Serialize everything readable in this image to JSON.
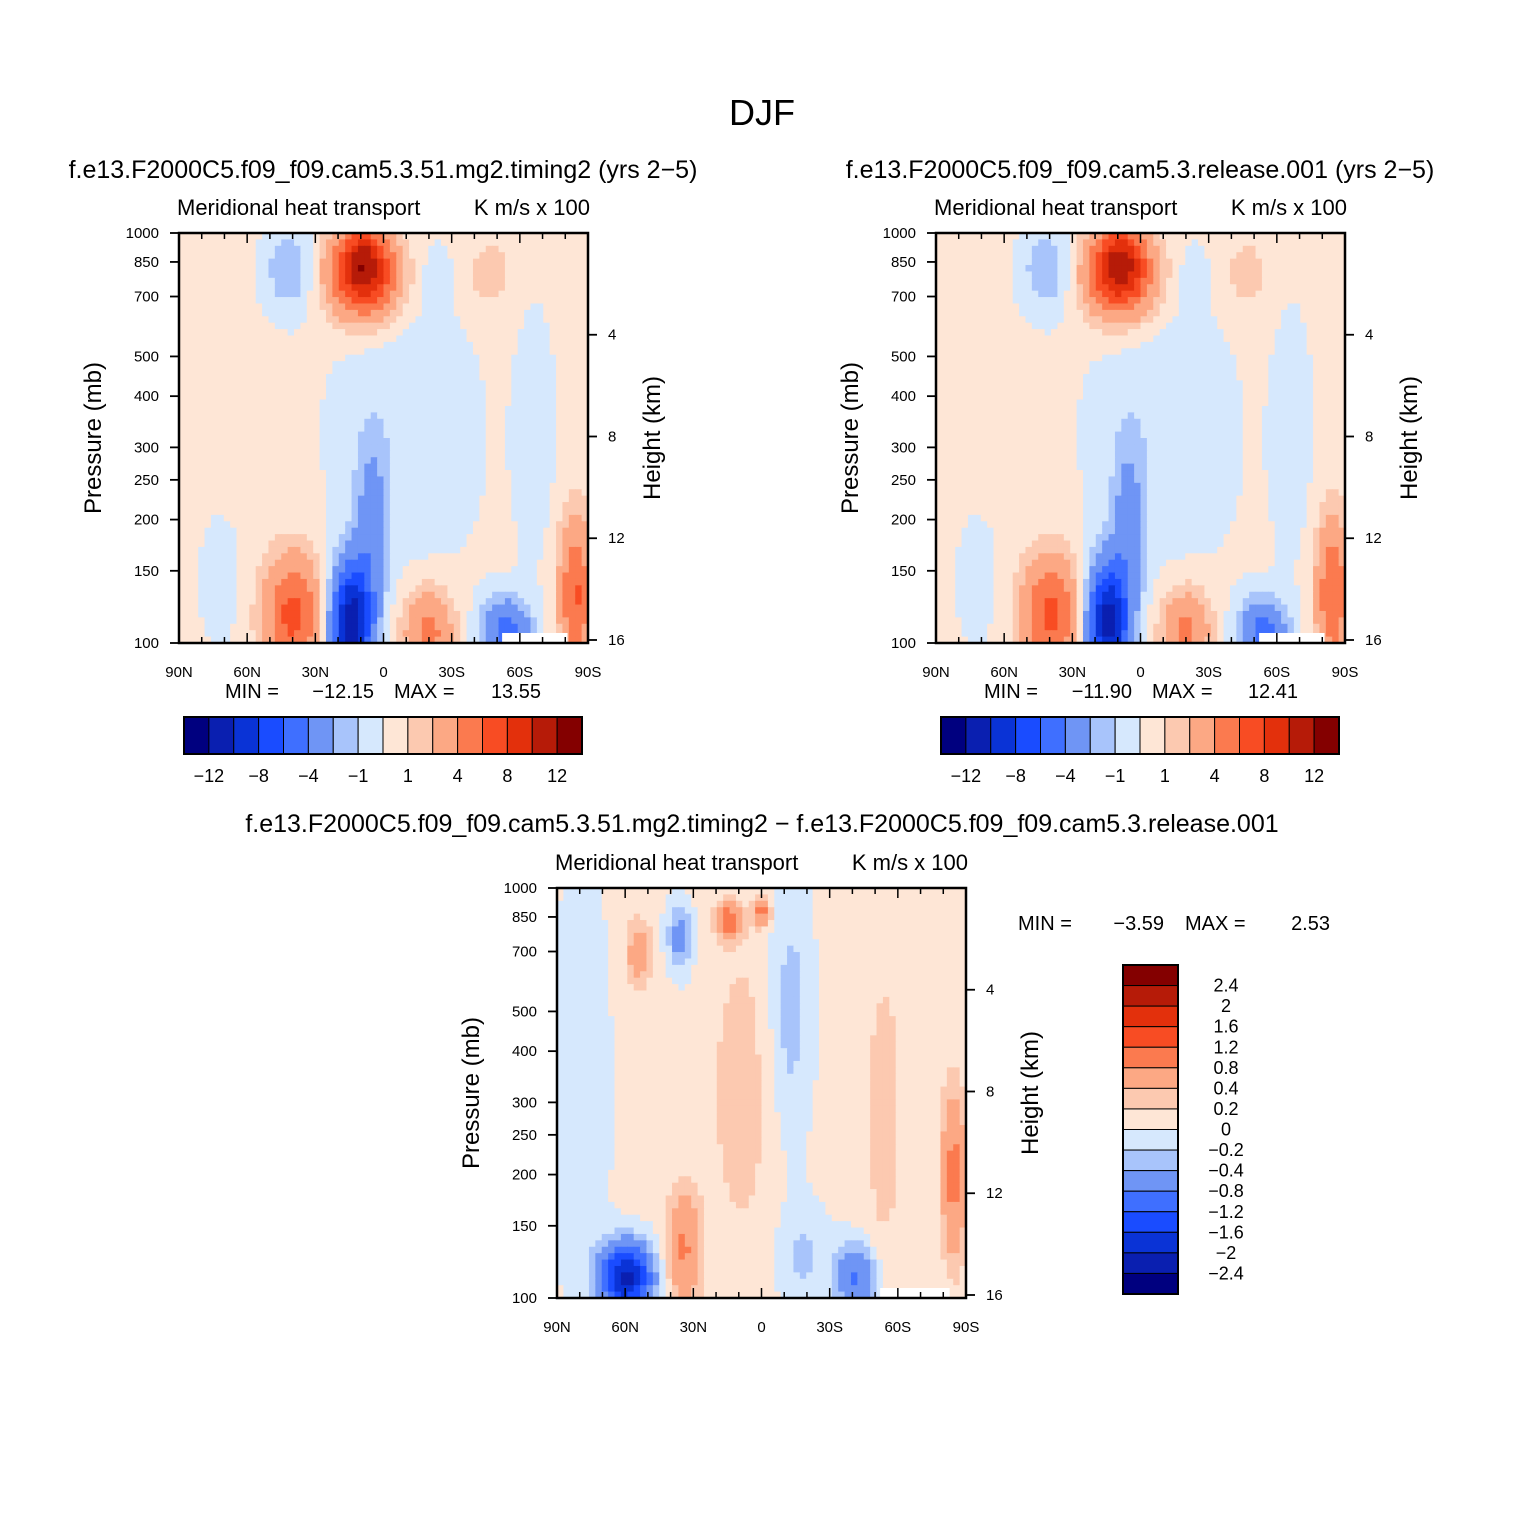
{
  "title": "DJF",
  "colors": {
    "levels": [
      "#00007f",
      "#0a1fb0",
      "#0a33d6",
      "#1a4cff",
      "#3f6fff",
      "#6f95f5",
      "#a8c4fb",
      "#d6e8fd",
      "#fee6d6",
      "#fcc9b0",
      "#fca884",
      "#fb7a4f",
      "#f84c23",
      "#e3300c",
      "#b61b08",
      "#840000"
    ]
  },
  "chart_data": [
    {
      "type": "contour",
      "title": "f.e13.F2000C5.f09_f09.cam5.3.51.mg2.timing2 (yrs 2−5)",
      "subtitle_left": "Meridional heat transport",
      "subtitle_right": "K m/s x 100",
      "xlabel": "",
      "ylabel": "Pressure (mb)",
      "y2label": "Height (km)",
      "x_ticks": [
        "90N",
        "60N",
        "30N",
        "0",
        "30S",
        "60S",
        "90S"
      ],
      "y_ticks": [
        100,
        150,
        200,
        250,
        300,
        400,
        500,
        700,
        850,
        1000
      ],
      "y2_ticks": [
        16,
        12,
        8,
        4
      ],
      "min_label": "MIN =",
      "min_value": "−12.15",
      "max_label": "MAX =",
      "max_value": "13.55",
      "colorbar": {
        "orientation": "horizontal",
        "labels": [
          "−12",
          "−8",
          "−4",
          "−1",
          "1",
          "4",
          "8",
          "12"
        ]
      }
    },
    {
      "type": "contour",
      "title": "f.e13.F2000C5.f09_f09.cam5.3.release.001 (yrs 2−5)",
      "subtitle_left": "Meridional heat transport",
      "subtitle_right": "K m/s x 100",
      "xlabel": "",
      "ylabel": "Pressure (mb)",
      "y2label": "Height (km)",
      "x_ticks": [
        "90N",
        "60N",
        "30N",
        "0",
        "30S",
        "60S",
        "90S"
      ],
      "y_ticks": [
        100,
        150,
        200,
        250,
        300,
        400,
        500,
        700,
        850,
        1000
      ],
      "y2_ticks": [
        16,
        12,
        8,
        4
      ],
      "min_label": "MIN =",
      "min_value": "−11.90",
      "max_label": "MAX =",
      "max_value": "12.41",
      "colorbar": {
        "orientation": "horizontal",
        "labels": [
          "−12",
          "−8",
          "−4",
          "−1",
          "1",
          "4",
          "8",
          "12"
        ]
      }
    },
    {
      "type": "contour",
      "title": "f.e13.F2000C5.f09_f09.cam5.3.51.mg2.timing2 − f.e13.F2000C5.f09_f09.cam5.3.release.001",
      "subtitle_left": "Meridional heat transport",
      "subtitle_right": "K m/s x 100",
      "xlabel": "",
      "ylabel": "Pressure (mb)",
      "y2label": "Height (km)",
      "x_ticks": [
        "90N",
        "60N",
        "30N",
        "0",
        "30S",
        "60S",
        "90S"
      ],
      "y_ticks": [
        100,
        150,
        200,
        250,
        300,
        400,
        500,
        700,
        850,
        1000
      ],
      "y2_ticks": [
        16,
        12,
        8,
        4
      ],
      "min_label": "MIN =",
      "min_value": "−3.59",
      "max_label": "MAX =",
      "max_value": "2.53",
      "colorbar": {
        "orientation": "vertical",
        "labels": [
          "2.4",
          "2",
          "1.6",
          "1.2",
          "0.8",
          "0.4",
          "0.2",
          "0",
          "−0.2",
          "−0.4",
          "−0.8",
          "−1.2",
          "−1.6",
          "−2",
          "−2.4"
        ]
      }
    }
  ]
}
